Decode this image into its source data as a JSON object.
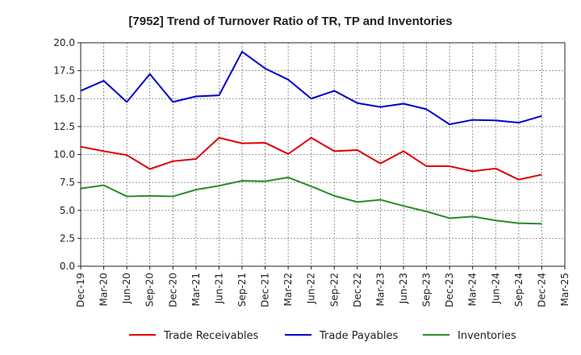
{
  "chart_data": {
    "type": "line",
    "title": "[7952]  Trend of Turnover Ratio of TR, TP and Inventories",
    "xlabel": "",
    "ylabel": "",
    "ylim": [
      0,
      20
    ],
    "y_ticks": [
      "0.0",
      "2.5",
      "5.0",
      "7.5",
      "10.0",
      "12.5",
      "15.0",
      "17.5",
      "20.0"
    ],
    "x_ticks": [
      "Dec-19",
      "Mar-20",
      "Jun-20",
      "Sep-20",
      "Dec-20",
      "Mar-21",
      "Jun-21",
      "Sep-21",
      "Dec-21",
      "Mar-22",
      "Jun-22",
      "Sep-22",
      "Dec-22",
      "Mar-23",
      "Jun-23",
      "Sep-23",
      "Dec-23",
      "Mar-24",
      "Jun-24",
      "Sep-24",
      "Dec-24",
      "Mar-25"
    ],
    "x": [
      "Dec-19",
      "Mar-20",
      "Jun-20",
      "Sep-20",
      "Dec-20",
      "Mar-21",
      "Jun-21",
      "Sep-21",
      "Dec-21",
      "Mar-22",
      "Jun-22",
      "Sep-22",
      "Dec-22",
      "Mar-23",
      "Jun-23",
      "Sep-23",
      "Dec-23",
      "Mar-24",
      "Jun-24",
      "Sep-24",
      "Dec-24"
    ],
    "grid": true,
    "legend_position": "bottom",
    "series": [
      {
        "name": "Trade Receivables",
        "color": "#e00000",
        "values": [
          10.7,
          10.3,
          9.95,
          8.7,
          9.4,
          9.6,
          11.5,
          11.0,
          11.05,
          10.05,
          11.5,
          10.3,
          10.4,
          9.2,
          10.3,
          8.95,
          8.95,
          8.5,
          8.75,
          7.75,
          8.2
        ]
      },
      {
        "name": "Trade Payables",
        "color": "#0000d0",
        "values": [
          15.7,
          16.6,
          14.7,
          17.2,
          14.7,
          15.2,
          15.3,
          19.2,
          17.7,
          16.7,
          15.0,
          15.7,
          14.6,
          14.25,
          14.55,
          14.05,
          12.7,
          13.1,
          13.05,
          12.85,
          13.45
        ]
      },
      {
        "name": "Inventories",
        "color": "#2a8a2a",
        "values": [
          6.95,
          7.25,
          6.25,
          6.3,
          6.25,
          6.85,
          7.2,
          7.65,
          7.6,
          7.95,
          7.15,
          6.3,
          5.75,
          5.95,
          5.4,
          4.9,
          4.3,
          4.45,
          4.1,
          3.85,
          3.8
        ]
      }
    ]
  }
}
